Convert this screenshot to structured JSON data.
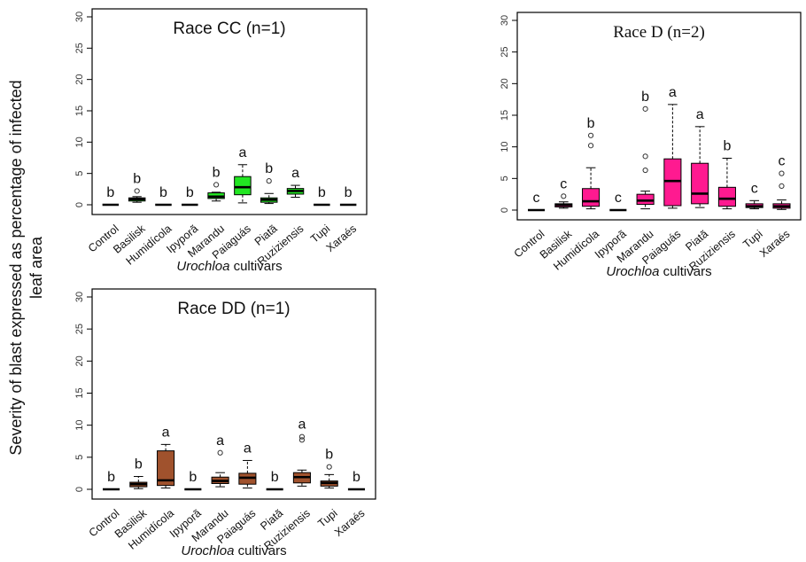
{
  "figure": {
    "ylabel_line1": "Severity of blast expressed as percentage of infected",
    "ylabel_line2": "leaf area",
    "xlabel_italic": "Urochloa",
    "xlabel_rest": " cultivars"
  },
  "chart_data": [
    {
      "type": "box",
      "title": "Race CC (n=1)",
      "color": "#22e622",
      "ylim": [
        0,
        30
      ],
      "yticks": [
        0,
        5,
        10,
        15,
        20,
        25,
        30
      ],
      "categories": [
        "Control",
        "Basilisk",
        "Humidícola",
        "Ipyporã",
        "Marandu",
        "Paiaguás",
        "Piatã",
        "Ruziziensis",
        "Tupi",
        "Xaraés"
      ],
      "boxes": [
        {
          "min": 0,
          "q1": 0,
          "median": 0,
          "q3": 0,
          "max": 0,
          "outliers": [],
          "letter": "b"
        },
        {
          "min": 0.4,
          "q1": 0.6,
          "median": 0.9,
          "q3": 1.1,
          "max": 1.3,
          "outliers": [
            2.2
          ],
          "letter": "b"
        },
        {
          "min": 0,
          "q1": 0,
          "median": 0,
          "q3": 0,
          "max": 0,
          "outliers": [],
          "letter": "b"
        },
        {
          "min": 0,
          "q1": 0,
          "median": 0,
          "q3": 0,
          "max": 0,
          "outliers": [],
          "letter": "b"
        },
        {
          "min": 0.6,
          "q1": 1.0,
          "median": 1.3,
          "q3": 1.9,
          "max": 2.0,
          "outliers": [
            3.2
          ],
          "letter": "b"
        },
        {
          "min": 0.3,
          "q1": 1.6,
          "median": 2.8,
          "q3": 4.5,
          "max": 6.4,
          "outliers": [],
          "letter": "a"
        },
        {
          "min": 0.2,
          "q1": 0.4,
          "median": 0.8,
          "q3": 1.1,
          "max": 1.8,
          "outliers": [
            3.8
          ],
          "letter": "b"
        },
        {
          "min": 1.2,
          "q1": 1.7,
          "median": 2.2,
          "q3": 2.6,
          "max": 3.1,
          "outliers": [],
          "letter": "a"
        },
        {
          "min": 0,
          "q1": 0,
          "median": 0,
          "q3": 0,
          "max": 0,
          "outliers": [],
          "letter": "b"
        },
        {
          "min": 0,
          "q1": 0,
          "median": 0,
          "q3": 0,
          "max": 0,
          "outliers": [],
          "letter": "b"
        }
      ]
    },
    {
      "type": "box",
      "title": "Race D (n=2)",
      "color": "#ff1a90",
      "ylim": [
        0,
        30
      ],
      "yticks": [
        0,
        5,
        10,
        15,
        20,
        25,
        30
      ],
      "categories": [
        "Control",
        "Basilisk",
        "Humidícola",
        "Ipyporã",
        "Marandu",
        "Paiaguás",
        "Piatã",
        "Ruziziensis",
        "Tupi",
        "Xaraés"
      ],
      "boxes": [
        {
          "min": 0,
          "q1": 0,
          "median": 0,
          "q3": 0,
          "max": 0,
          "outliers": [],
          "letter": "c"
        },
        {
          "min": 0.3,
          "q1": 0.5,
          "median": 0.8,
          "q3": 1.0,
          "max": 1.3,
          "outliers": [
            2.2
          ],
          "letter": "c"
        },
        {
          "min": 0.2,
          "q1": 0.6,
          "median": 1.4,
          "q3": 3.4,
          "max": 6.7,
          "outliers": [
            10.2,
            11.8
          ],
          "letter": "b"
        },
        {
          "min": 0,
          "q1": 0,
          "median": 0,
          "q3": 0,
          "max": 0,
          "outliers": [],
          "letter": "c"
        },
        {
          "min": 0.2,
          "q1": 0.9,
          "median": 1.5,
          "q3": 2.5,
          "max": 3.0,
          "outliers": [
            6.3,
            8.5,
            16.0
          ],
          "letter": "b"
        },
        {
          "min": 0.3,
          "q1": 0.7,
          "median": 4.6,
          "q3": 8.1,
          "max": 16.7,
          "outliers": [],
          "letter": "a"
        },
        {
          "min": 0.4,
          "q1": 1.0,
          "median": 2.6,
          "q3": 7.4,
          "max": 13.2,
          "outliers": [],
          "letter": "a"
        },
        {
          "min": 0.2,
          "q1": 0.6,
          "median": 1.8,
          "q3": 3.6,
          "max": 8.2,
          "outliers": [],
          "letter": "b"
        },
        {
          "min": 0.2,
          "q1": 0.4,
          "median": 0.6,
          "q3": 1.0,
          "max": 1.5,
          "outliers": [],
          "letter": "c"
        },
        {
          "min": 0.1,
          "q1": 0.3,
          "median": 0.6,
          "q3": 1.0,
          "max": 1.6,
          "outliers": [
            3.8,
            5.8
          ],
          "letter": "c"
        }
      ]
    },
    {
      "type": "box",
      "title": "Race DD (n=1)",
      "color": "#a0522d",
      "ylim": [
        0,
        30
      ],
      "yticks": [
        0,
        5,
        10,
        15,
        20,
        25,
        30
      ],
      "categories": [
        "Control",
        "Basilisk",
        "Humidícola",
        "Ipyporã",
        "Marandu",
        "Paiaguás",
        "Piatã",
        "Ruziziensis",
        "Tupi",
        "Xaraés"
      ],
      "boxes": [
        {
          "min": 0,
          "q1": 0,
          "median": 0,
          "q3": 0,
          "max": 0,
          "outliers": [],
          "letter": "b"
        },
        {
          "min": 0.1,
          "q1": 0.4,
          "median": 0.8,
          "q3": 1.1,
          "max": 2.0,
          "outliers": [],
          "letter": "b"
        },
        {
          "min": 0.2,
          "q1": 0.6,
          "median": 1.4,
          "q3": 6.0,
          "max": 7.0,
          "outliers": [],
          "letter": "a"
        },
        {
          "min": 0,
          "q1": 0,
          "median": 0,
          "q3": 0,
          "max": 0,
          "outliers": [],
          "letter": "b"
        },
        {
          "min": 0.4,
          "q1": 0.9,
          "median": 1.3,
          "q3": 1.9,
          "max": 2.6,
          "outliers": [
            5.7
          ],
          "letter": "a"
        },
        {
          "min": 0.2,
          "q1": 0.8,
          "median": 1.8,
          "q3": 2.5,
          "max": 4.5,
          "outliers": [],
          "letter": "a"
        },
        {
          "min": 0,
          "q1": 0,
          "median": 0,
          "q3": 0,
          "max": 0,
          "outliers": [],
          "letter": "b"
        },
        {
          "min": 0.5,
          "q1": 1.0,
          "median": 1.9,
          "q3": 2.6,
          "max": 3.0,
          "outliers": [
            7.7,
            8.2
          ],
          "letter": "a"
        },
        {
          "min": 0.2,
          "q1": 0.5,
          "median": 1.0,
          "q3": 1.3,
          "max": 2.3,
          "outliers": [
            3.5
          ],
          "letter": "b"
        },
        {
          "min": 0,
          "q1": 0,
          "median": 0,
          "q3": 0,
          "max": 0,
          "outliers": [],
          "letter": "b"
        }
      ]
    }
  ]
}
